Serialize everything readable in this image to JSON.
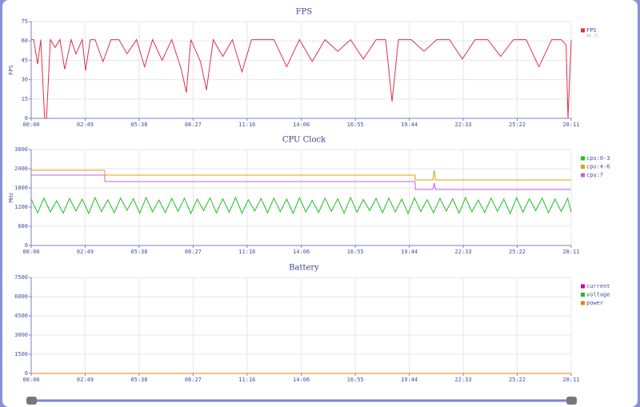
{
  "chart_data": [
    {
      "type": "line",
      "title": "FPS",
      "ylabel": "FPS",
      "legend_value": 60.71,
      "xlim": [
        0,
        1691
      ],
      "ylim": [
        0,
        75
      ],
      "yticks": [
        0,
        15,
        30,
        45,
        60,
        75
      ],
      "xticks": [
        {
          "value": 0,
          "label": "00:00"
        },
        {
          "value": 169,
          "label": "02:49"
        },
        {
          "value": 338,
          "label": "05:38"
        },
        {
          "value": 507,
          "label": "08:27"
        },
        {
          "value": 676,
          "label": "11:16"
        },
        {
          "value": 846,
          "label": "14:06"
        },
        {
          "value": 1015,
          "label": "16:55"
        },
        {
          "value": 1184,
          "label": "19:44"
        },
        {
          "value": 1353,
          "label": "22:33"
        },
        {
          "value": 1522,
          "label": "25:22"
        },
        {
          "value": 1691,
          "label": "28:11"
        }
      ],
      "grid": true,
      "series": [
        {
          "name": "FPS",
          "color": "#e0304a",
          "x": [
            0,
            8,
            20,
            30,
            42,
            48,
            60,
            75,
            90,
            105,
            125,
            140,
            160,
            170,
            185,
            200,
            225,
            250,
            275,
            300,
            330,
            355,
            380,
            410,
            440,
            470,
            486,
            500,
            530,
            549,
            570,
            600,
            630,
            660,
            690,
            720,
            760,
            800,
            840,
            880,
            920,
            960,
            1000,
            1040,
            1080,
            1110,
            1130,
            1150,
            1190,
            1230,
            1270,
            1310,
            1350,
            1390,
            1430,
            1470,
            1510,
            1550,
            1590,
            1630,
            1660,
            1675,
            1681,
            1691
          ],
          "values": [
            61,
            61,
            42,
            61,
            0,
            0,
            61,
            55,
            61,
            38,
            61,
            50,
            61,
            37,
            61,
            61,
            44,
            61,
            61,
            50,
            61,
            40,
            61,
            45,
            61,
            38,
            20,
            61,
            44,
            22,
            61,
            48,
            61,
            36,
            61,
            61,
            61,
            40,
            61,
            44,
            61,
            52,
            61,
            46,
            61,
            61,
            13,
            61,
            61,
            52,
            61,
            61,
            46,
            61,
            61,
            48,
            61,
            61,
            40,
            61,
            61,
            57,
            0,
            61
          ]
        }
      ]
    },
    {
      "type": "line",
      "title": "CPU Clock",
      "ylabel": "MHz",
      "xlim": [
        0,
        1691
      ],
      "ylim": [
        0,
        3000
      ],
      "yticks": [
        0,
        600,
        1200,
        1800,
        2400,
        3000
      ],
      "xticks": [
        {
          "value": 0,
          "label": "00:00"
        },
        {
          "value": 169,
          "label": "02:49"
        },
        {
          "value": 338,
          "label": "05:38"
        },
        {
          "value": 507,
          "label": "08:27"
        },
        {
          "value": 676,
          "label": "11:16"
        },
        {
          "value": 846,
          "label": "14:06"
        },
        {
          "value": 1015,
          "label": "16:55"
        },
        {
          "value": 1184,
          "label": "19:44"
        },
        {
          "value": 1353,
          "label": "22:33"
        },
        {
          "value": 1522,
          "label": "25:22"
        },
        {
          "value": 1691,
          "label": "28:11"
        }
      ],
      "grid": true,
      "series": [
        {
          "name": "cpu:0-3",
          "color": "#1ec01e",
          "x": [
            0,
            20,
            40,
            60,
            80,
            100,
            120,
            140,
            160,
            180,
            200,
            220,
            240,
            260,
            280,
            300,
            320,
            340,
            360,
            380,
            400,
            420,
            440,
            460,
            480,
            500,
            520,
            540,
            560,
            580,
            600,
            620,
            640,
            660,
            680,
            700,
            720,
            740,
            760,
            780,
            800,
            820,
            840,
            860,
            880,
            900,
            920,
            940,
            960,
            980,
            1000,
            1020,
            1040,
            1060,
            1080,
            1100,
            1120,
            1140,
            1160,
            1180,
            1200,
            1220,
            1240,
            1260,
            1280,
            1300,
            1320,
            1340,
            1360,
            1380,
            1400,
            1420,
            1440,
            1460,
            1480,
            1500,
            1520,
            1540,
            1560,
            1580,
            1600,
            1620,
            1640,
            1660,
            1680,
            1691
          ],
          "values": [
            1450,
            1020,
            1480,
            1050,
            1400,
            1010,
            1470,
            1080,
            1450,
            1000,
            1490,
            1060,
            1430,
            1020,
            1480,
            1100,
            1460,
            1010,
            1500,
            1050,
            1420,
            1030,
            1470,
            1070,
            1480,
            1000,
            1450,
            1090,
            1490,
            1020,
            1460,
            1040,
            1500,
            1010,
            1430,
            1080,
            1470,
            1020,
            1480,
            1060,
            1450,
            1000,
            1490,
            1050,
            1410,
            1030,
            1480,
            1070,
            1460,
            1010,
            1500,
            1040,
            1440,
            1090,
            1470,
            1020,
            1480,
            1050,
            1450,
            1000,
            1490,
            1060,
            1430,
            1020,
            1470,
            1080,
            1460,
            1010,
            1500,
            1050,
            1420,
            1030,
            1480,
            1070,
            1450,
            1000,
            1490,
            1040,
            1460,
            1090,
            1480,
            1020,
            1450,
            1060,
            1470,
            1030
          ]
        },
        {
          "name": "cpu:4-6",
          "color": "#e0a000",
          "x": [
            0,
            230,
            231,
            1202,
            1203,
            1258,
            1262,
            1266,
            1691
          ],
          "values": [
            2350,
            2350,
            2200,
            2200,
            2050,
            2050,
            2350,
            2050,
            2050
          ]
        },
        {
          "name": "cpu:7",
          "color": "#c060e8",
          "x": [
            0,
            230,
            231,
            1202,
            1203,
            1258,
            1262,
            1266,
            1691
          ],
          "values": [
            2200,
            2200,
            2000,
            2000,
            1750,
            1750,
            1950,
            1750,
            1750
          ]
        }
      ]
    },
    {
      "type": "line",
      "title": "Battery",
      "xlim": [
        0,
        1691
      ],
      "ylim": [
        0,
        7500
      ],
      "yticks": [
        0,
        1500,
        3000,
        4500,
        6000,
        7500
      ],
      "xticks": [
        {
          "value": 0,
          "label": "00:00"
        },
        {
          "value": 169,
          "label": "02:49"
        },
        {
          "value": 338,
          "label": "05:38"
        },
        {
          "value": 507,
          "label": "08:27"
        },
        {
          "value": 676,
          "label": "11:16"
        },
        {
          "value": 846,
          "label": "14:06"
        },
        {
          "value": 1015,
          "label": "16:55"
        },
        {
          "value": 1184,
          "label": "19:44"
        },
        {
          "value": 1353,
          "label": "22:33"
        },
        {
          "value": 1522,
          "label": "25:22"
        },
        {
          "value": 1691,
          "label": "28:11"
        }
      ],
      "grid": true,
      "series": [
        {
          "name": "current",
          "color": "#c000b0",
          "x": [
            0,
            1691
          ],
          "values": [
            0,
            0
          ]
        },
        {
          "name": "voltage",
          "color": "#1ec01e",
          "x": [
            0,
            1691
          ],
          "values": [
            0,
            0
          ]
        },
        {
          "name": "power",
          "color": "#e08a00",
          "x": [
            0,
            1691
          ],
          "values": [
            0,
            0
          ]
        }
      ]
    }
  ]
}
